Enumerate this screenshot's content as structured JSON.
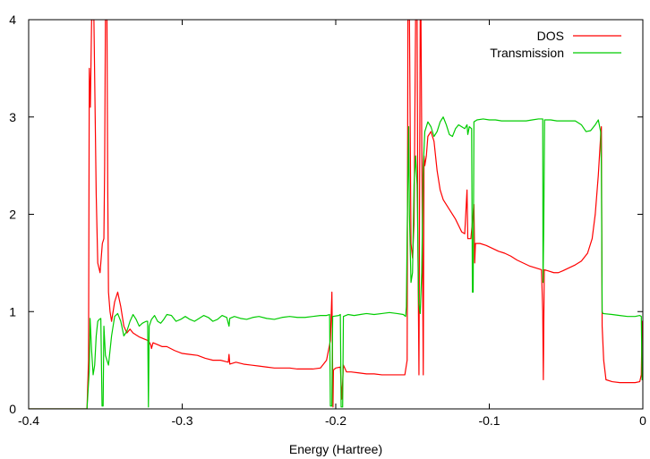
{
  "chart_data": {
    "type": "line",
    "title": "",
    "xlabel": "Energy (Hartree)",
    "ylabel": "",
    "xlim": [
      -0.4,
      0
    ],
    "ylim": [
      0,
      4
    ],
    "x_ticks": [
      -0.4,
      -0.3,
      -0.2,
      -0.1,
      0
    ],
    "x_tick_labels": [
      "-0.4",
      "-0.3",
      "-0.2",
      "-0.1",
      "0"
    ],
    "y_ticks": [
      0,
      1,
      2,
      3,
      4
    ],
    "y_tick_labels": [
      "0",
      "1",
      "2",
      "3",
      "4"
    ],
    "grid": false,
    "legend_position": "top-right",
    "series": [
      {
        "name": "DOS",
        "color": "#ff0000",
        "points": [
          [
            -0.4,
            0
          ],
          [
            -0.362,
            0
          ],
          [
            -0.361,
            0.5
          ],
          [
            -0.3605,
            3.5
          ],
          [
            -0.3598,
            3.1
          ],
          [
            -0.359,
            4.0
          ],
          [
            -0.3575,
            4.0
          ],
          [
            -0.356,
            2.2
          ],
          [
            -0.355,
            1.5
          ],
          [
            -0.3535,
            1.4
          ],
          [
            -0.352,
            1.7
          ],
          [
            -0.351,
            1.75
          ],
          [
            -0.3505,
            2.5
          ],
          [
            -0.35,
            4.0
          ],
          [
            -0.349,
            4.0
          ],
          [
            -0.3485,
            2.3
          ],
          [
            -0.348,
            1.2
          ],
          [
            -0.347,
            1.0
          ],
          [
            -0.346,
            0.9
          ],
          [
            -0.344,
            1.1
          ],
          [
            -0.342,
            1.2
          ],
          [
            -0.34,
            1.05
          ],
          [
            -0.338,
            0.85
          ],
          [
            -0.336,
            0.78
          ],
          [
            -0.334,
            0.82
          ],
          [
            -0.332,
            0.78
          ],
          [
            -0.33,
            0.76
          ],
          [
            -0.328,
            0.74
          ],
          [
            -0.325,
            0.72
          ],
          [
            -0.322,
            0.7
          ],
          [
            -0.3205,
            0.66
          ],
          [
            -0.32,
            0.62
          ],
          [
            -0.319,
            0.68
          ],
          [
            -0.316,
            0.66
          ],
          [
            -0.313,
            0.64
          ],
          [
            -0.31,
            0.64
          ],
          [
            -0.305,
            0.6
          ],
          [
            -0.3,
            0.57
          ],
          [
            -0.295,
            0.56
          ],
          [
            -0.29,
            0.55
          ],
          [
            -0.285,
            0.52
          ],
          [
            -0.28,
            0.5
          ],
          [
            -0.275,
            0.5
          ],
          [
            -0.27,
            0.48
          ],
          [
            -0.2695,
            0.56
          ],
          [
            -0.269,
            0.46
          ],
          [
            -0.265,
            0.48
          ],
          [
            -0.26,
            0.46
          ],
          [
            -0.255,
            0.45
          ],
          [
            -0.25,
            0.44
          ],
          [
            -0.245,
            0.43
          ],
          [
            -0.24,
            0.42
          ],
          [
            -0.235,
            0.42
          ],
          [
            -0.23,
            0.42
          ],
          [
            -0.225,
            0.41
          ],
          [
            -0.22,
            0.41
          ],
          [
            -0.215,
            0.41
          ],
          [
            -0.21,
            0.42
          ],
          [
            -0.206,
            0.5
          ],
          [
            -0.2035,
            0.7
          ],
          [
            -0.2025,
            1.2
          ],
          [
            -0.2018,
            0.02
          ],
          [
            -0.2015,
            0.4
          ],
          [
            -0.2,
            0.42
          ],
          [
            -0.197,
            0.43
          ],
          [
            -0.196,
            0.1
          ],
          [
            -0.195,
            0.45
          ],
          [
            -0.193,
            0.38
          ],
          [
            -0.19,
            0.38
          ],
          [
            -0.185,
            0.37
          ],
          [
            -0.18,
            0.36
          ],
          [
            -0.175,
            0.36
          ],
          [
            -0.17,
            0.35
          ],
          [
            -0.165,
            0.35
          ],
          [
            -0.16,
            0.35
          ],
          [
            -0.155,
            0.35
          ],
          [
            -0.1535,
            0.5
          ],
          [
            -0.153,
            4.0
          ],
          [
            -0.152,
            4.0
          ],
          [
            -0.151,
            1.7
          ],
          [
            -0.15,
            1.55
          ],
          [
            -0.149,
            1.9
          ],
          [
            -0.148,
            4.0
          ],
          [
            -0.147,
            4.0
          ],
          [
            -0.1465,
            1.7
          ],
          [
            -0.1458,
            0.35
          ],
          [
            -0.145,
            4.0
          ],
          [
            -0.1445,
            4.0
          ],
          [
            -0.1438,
            2.3
          ],
          [
            -0.143,
            0.35
          ],
          [
            -0.1425,
            2.6
          ],
          [
            -0.142,
            2.5
          ],
          [
            -0.141,
            2.6
          ],
          [
            -0.14,
            2.8
          ],
          [
            -0.138,
            2.85
          ],
          [
            -0.136,
            2.75
          ],
          [
            -0.134,
            2.45
          ],
          [
            -0.132,
            2.25
          ],
          [
            -0.13,
            2.15
          ],
          [
            -0.126,
            2.05
          ],
          [
            -0.122,
            1.95
          ],
          [
            -0.118,
            1.82
          ],
          [
            -0.116,
            1.8
          ],
          [
            -0.1145,
            2.25
          ],
          [
            -0.114,
            1.75
          ],
          [
            -0.112,
            1.75
          ],
          [
            -0.11,
            2.1
          ],
          [
            -0.1095,
            1.5
          ],
          [
            -0.109,
            1.7
          ],
          [
            -0.106,
            1.7
          ],
          [
            -0.102,
            1.68
          ],
          [
            -0.098,
            1.65
          ],
          [
            -0.094,
            1.62
          ],
          [
            -0.09,
            1.6
          ],
          [
            -0.086,
            1.57
          ],
          [
            -0.082,
            1.53
          ],
          [
            -0.078,
            1.5
          ],
          [
            -0.074,
            1.47
          ],
          [
            -0.07,
            1.45
          ],
          [
            -0.066,
            1.43
          ],
          [
            -0.0652,
            1.0
          ],
          [
            -0.0648,
            0.3
          ],
          [
            -0.0642,
            1.43
          ],
          [
            -0.062,
            1.42
          ],
          [
            -0.058,
            1.4
          ],
          [
            -0.055,
            1.4
          ],
          [
            -0.052,
            1.42
          ],
          [
            -0.048,
            1.45
          ],
          [
            -0.044,
            1.48
          ],
          [
            -0.04,
            1.52
          ],
          [
            -0.036,
            1.6
          ],
          [
            -0.033,
            1.75
          ],
          [
            -0.031,
            2.0
          ],
          [
            -0.029,
            2.4
          ],
          [
            -0.0275,
            2.8
          ],
          [
            -0.027,
            2.9
          ],
          [
            -0.0265,
            0.85
          ],
          [
            -0.0255,
            0.5
          ],
          [
            -0.024,
            0.3
          ],
          [
            -0.02,
            0.28
          ],
          [
            -0.015,
            0.27
          ],
          [
            -0.01,
            0.27
          ],
          [
            -0.005,
            0.27
          ],
          [
            -0.002,
            0.28
          ],
          [
            -0.001,
            0.35
          ],
          [
            -0.0005,
            0.9
          ],
          [
            0,
            0.9
          ]
        ]
      },
      {
        "name": "Transmission",
        "color": "#00cc00",
        "points": [
          [
            -0.4,
            0
          ],
          [
            -0.362,
            0
          ],
          [
            -0.3605,
            0.4
          ],
          [
            -0.36,
            0.93
          ],
          [
            -0.359,
            0.6
          ],
          [
            -0.358,
            0.35
          ],
          [
            -0.357,
            0.45
          ],
          [
            -0.356,
            0.75
          ],
          [
            -0.355,
            0.9
          ],
          [
            -0.354,
            0.92
          ],
          [
            -0.353,
            0.93
          ],
          [
            -0.3522,
            0.03
          ],
          [
            -0.3515,
            0.03
          ],
          [
            -0.351,
            0.85
          ],
          [
            -0.35,
            0.55
          ],
          [
            -0.348,
            0.45
          ],
          [
            -0.346,
            0.75
          ],
          [
            -0.344,
            0.95
          ],
          [
            -0.342,
            0.98
          ],
          [
            -0.34,
            0.9
          ],
          [
            -0.338,
            0.75
          ],
          [
            -0.336,
            0.8
          ],
          [
            -0.334,
            0.9
          ],
          [
            -0.332,
            0.97
          ],
          [
            -0.33,
            0.92
          ],
          [
            -0.328,
            0.85
          ],
          [
            -0.326,
            0.88
          ],
          [
            -0.3235,
            0.9
          ],
          [
            -0.3225,
            0.9
          ],
          [
            -0.322,
            0.02
          ],
          [
            -0.3215,
            0.85
          ],
          [
            -0.32,
            0.92
          ],
          [
            -0.318,
            0.96
          ],
          [
            -0.316,
            0.9
          ],
          [
            -0.314,
            0.88
          ],
          [
            -0.312,
            0.92
          ],
          [
            -0.31,
            0.97
          ],
          [
            -0.307,
            0.96
          ],
          [
            -0.304,
            0.9
          ],
          [
            -0.301,
            0.92
          ],
          [
            -0.298,
            0.95
          ],
          [
            -0.295,
            0.92
          ],
          [
            -0.292,
            0.9
          ],
          [
            -0.289,
            0.93
          ],
          [
            -0.286,
            0.96
          ],
          [
            -0.283,
            0.94
          ],
          [
            -0.28,
            0.9
          ],
          [
            -0.277,
            0.92
          ],
          [
            -0.274,
            0.96
          ],
          [
            -0.271,
            0.94
          ],
          [
            -0.2695,
            0.85
          ],
          [
            -0.269,
            0.93
          ],
          [
            -0.266,
            0.95
          ],
          [
            -0.262,
            0.93
          ],
          [
            -0.258,
            0.92
          ],
          [
            -0.254,
            0.94
          ],
          [
            -0.25,
            0.95
          ],
          [
            -0.245,
            0.93
          ],
          [
            -0.24,
            0.92
          ],
          [
            -0.235,
            0.94
          ],
          [
            -0.23,
            0.95
          ],
          [
            -0.225,
            0.94
          ],
          [
            -0.22,
            0.94
          ],
          [
            -0.215,
            0.95
          ],
          [
            -0.21,
            0.96
          ],
          [
            -0.206,
            0.96
          ],
          [
            -0.204,
            0.97
          ],
          [
            -0.2035,
            0.03
          ],
          [
            -0.2025,
            0.03
          ],
          [
            -0.202,
            0.95
          ],
          [
            -0.198,
            0.96
          ],
          [
            -0.197,
            0.97
          ],
          [
            -0.1965,
            0.02
          ],
          [
            -0.1955,
            0.02
          ],
          [
            -0.195,
            0.95
          ],
          [
            -0.192,
            0.97
          ],
          [
            -0.188,
            0.96
          ],
          [
            -0.184,
            0.97
          ],
          [
            -0.18,
            0.98
          ],
          [
            -0.175,
            0.97
          ],
          [
            -0.17,
            0.98
          ],
          [
            -0.165,
            0.99
          ],
          [
            -0.16,
            0.98
          ],
          [
            -0.156,
            0.97
          ],
          [
            -0.1545,
            0.95
          ],
          [
            -0.154,
            1.05
          ],
          [
            -0.1535,
            1.8
          ],
          [
            -0.1525,
            2.9
          ],
          [
            -0.152,
            2.0
          ],
          [
            -0.151,
            1.3
          ],
          [
            -0.15,
            1.4
          ],
          [
            -0.149,
            2.3
          ],
          [
            -0.148,
            2.6
          ],
          [
            -0.147,
            2.3
          ],
          [
            -0.146,
            1.1
          ],
          [
            -0.145,
            0.98
          ],
          [
            -0.144,
            1.4
          ],
          [
            -0.143,
            2.5
          ],
          [
            -0.142,
            2.85
          ],
          [
            -0.14,
            2.95
          ],
          [
            -0.138,
            2.9
          ],
          [
            -0.136,
            2.8
          ],
          [
            -0.134,
            2.85
          ],
          [
            -0.132,
            2.95
          ],
          [
            -0.13,
            3.0
          ],
          [
            -0.128,
            2.92
          ],
          [
            -0.126,
            2.82
          ],
          [
            -0.124,
            2.8
          ],
          [
            -0.122,
            2.88
          ],
          [
            -0.12,
            2.92
          ],
          [
            -0.118,
            2.9
          ],
          [
            -0.116,
            2.88
          ],
          [
            -0.1145,
            2.92
          ],
          [
            -0.114,
            2.82
          ],
          [
            -0.113,
            2.9
          ],
          [
            -0.1115,
            2.88
          ],
          [
            -0.111,
            1.2
          ],
          [
            -0.1105,
            1.2
          ],
          [
            -0.11,
            2.95
          ],
          [
            -0.108,
            2.97
          ],
          [
            -0.104,
            2.98
          ],
          [
            -0.1,
            2.97
          ],
          [
            -0.096,
            2.97
          ],
          [
            -0.092,
            2.96
          ],
          [
            -0.088,
            2.96
          ],
          [
            -0.084,
            2.96
          ],
          [
            -0.08,
            2.96
          ],
          [
            -0.076,
            2.96
          ],
          [
            -0.072,
            2.97
          ],
          [
            -0.068,
            2.98
          ],
          [
            -0.066,
            2.98
          ],
          [
            -0.0652,
            2.98
          ],
          [
            -0.065,
            1.3
          ],
          [
            -0.0645,
            1.9
          ],
          [
            -0.064,
            2.97
          ],
          [
            -0.06,
            2.97
          ],
          [
            -0.056,
            2.96
          ],
          [
            -0.052,
            2.96
          ],
          [
            -0.048,
            2.96
          ],
          [
            -0.044,
            2.96
          ],
          [
            -0.04,
            2.92
          ],
          [
            -0.037,
            2.85
          ],
          [
            -0.034,
            2.86
          ],
          [
            -0.031,
            2.92
          ],
          [
            -0.029,
            2.97
          ],
          [
            -0.0275,
            2.85
          ],
          [
            -0.027,
            2.5
          ],
          [
            -0.0265,
            1.0
          ],
          [
            -0.026,
            0.98
          ],
          [
            -0.02,
            0.97
          ],
          [
            -0.015,
            0.96
          ],
          [
            -0.01,
            0.95
          ],
          [
            -0.005,
            0.95
          ],
          [
            -0.002,
            0.96
          ],
          [
            -0.001,
            0.95
          ],
          [
            -0.0005,
            0.3
          ],
          [
            0,
            0.3
          ]
        ]
      }
    ]
  }
}
